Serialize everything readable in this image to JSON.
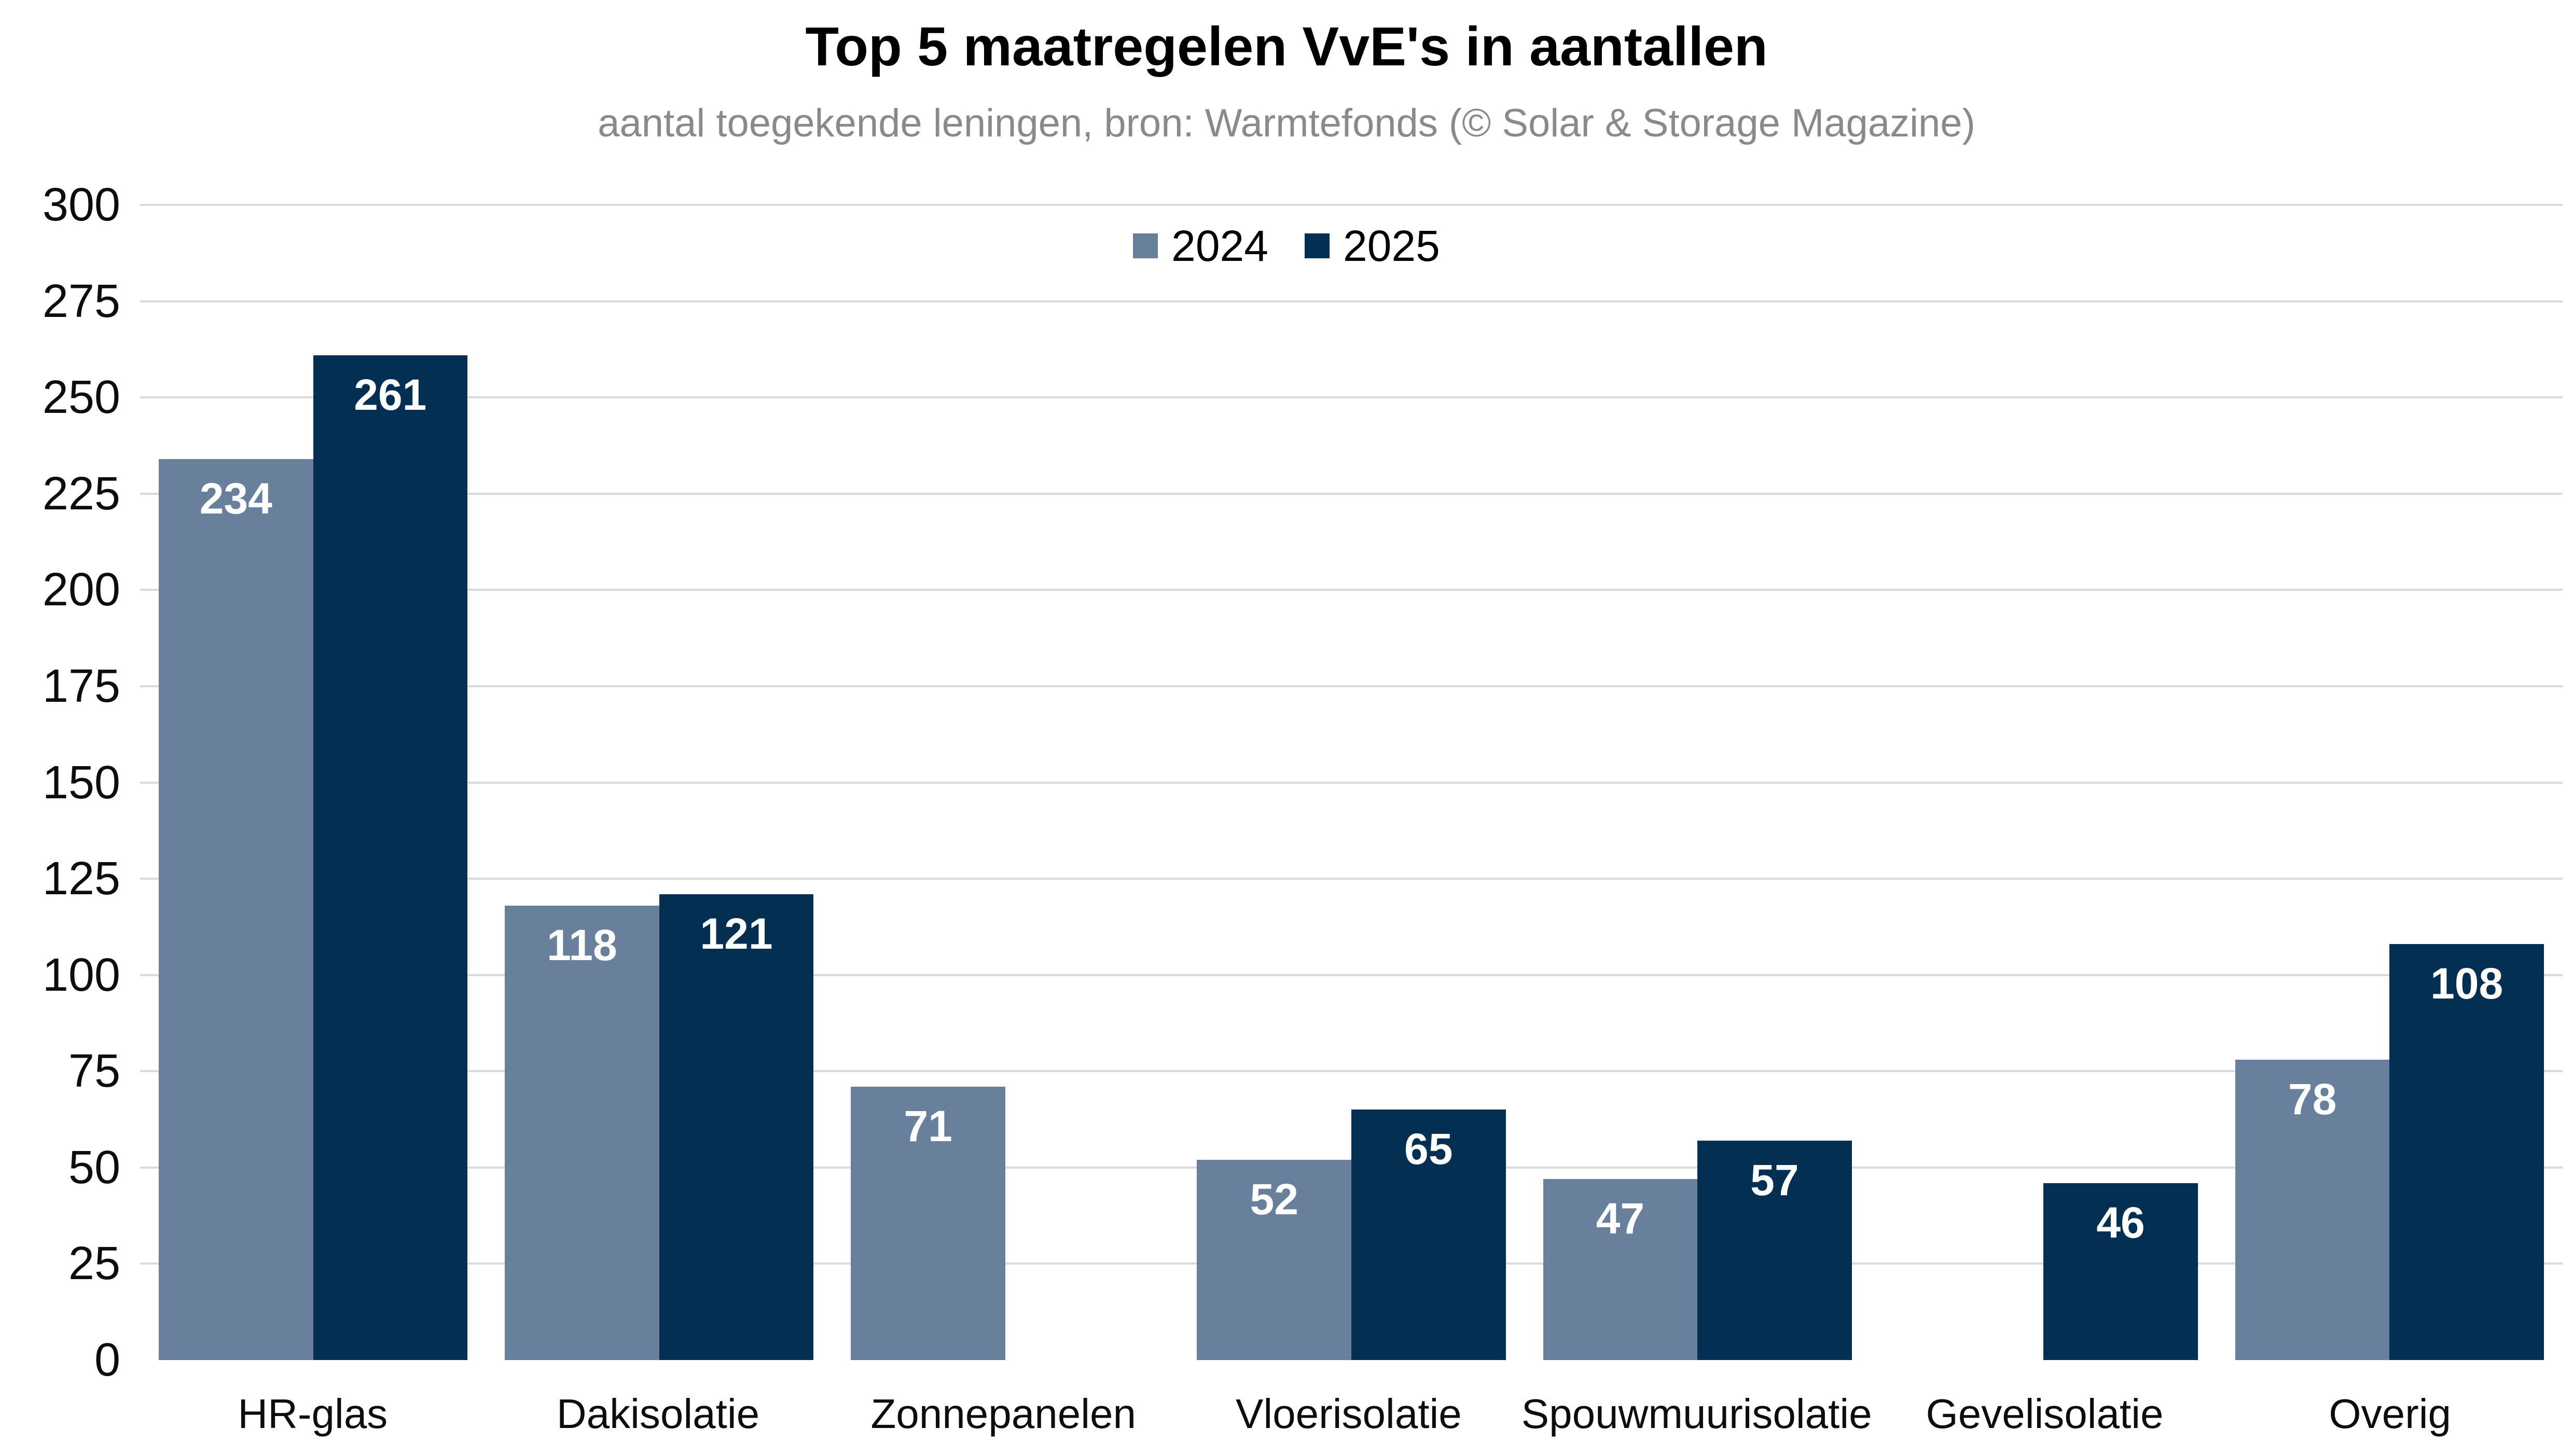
{
  "header": {
    "title": "Top 5 maatregelen VvE's in aantallen",
    "subtitle": "aantal toegekende leningen, bron: Warmtefonds (© Solar & Storage Magazine)"
  },
  "colors": {
    "background": "#ffffff",
    "gridline": "#dadada",
    "axis_text": "#0d0d0d",
    "subtitle_text": "#8a8a8a",
    "value_label_text": "#ffffff",
    "series_2024": "#68809b",
    "series_2025": "#033052"
  },
  "chart_data": {
    "type": "bar",
    "title": "Top 5 maatregelen VvE's in aantallen",
    "subtitle": "aantal toegekende leningen, bron: Warmtefonds (© Solar & Storage Magazine)",
    "categories": [
      "HR-glas",
      "Dakisolatie",
      "Zonnepanelen",
      "Vloerisolatie",
      "Spouwmuurisolatie",
      "Gevelisolatie",
      "Overig"
    ],
    "series": [
      {
        "name": "2024",
        "color": "#68809b",
        "values": [
          234,
          118,
          71,
          52,
          47,
          null,
          78
        ]
      },
      {
        "name": "2025",
        "color": "#033052",
        "values": [
          261,
          121,
          null,
          65,
          57,
          46,
          108
        ]
      }
    ],
    "xlabel": "",
    "ylabel": "",
    "ylim": [
      0,
      300
    ],
    "ytick_step": 25,
    "grid": true,
    "gridlines_at_zero": false,
    "legend_position": "top-center",
    "value_labels": "inside-top-white-bold"
  }
}
